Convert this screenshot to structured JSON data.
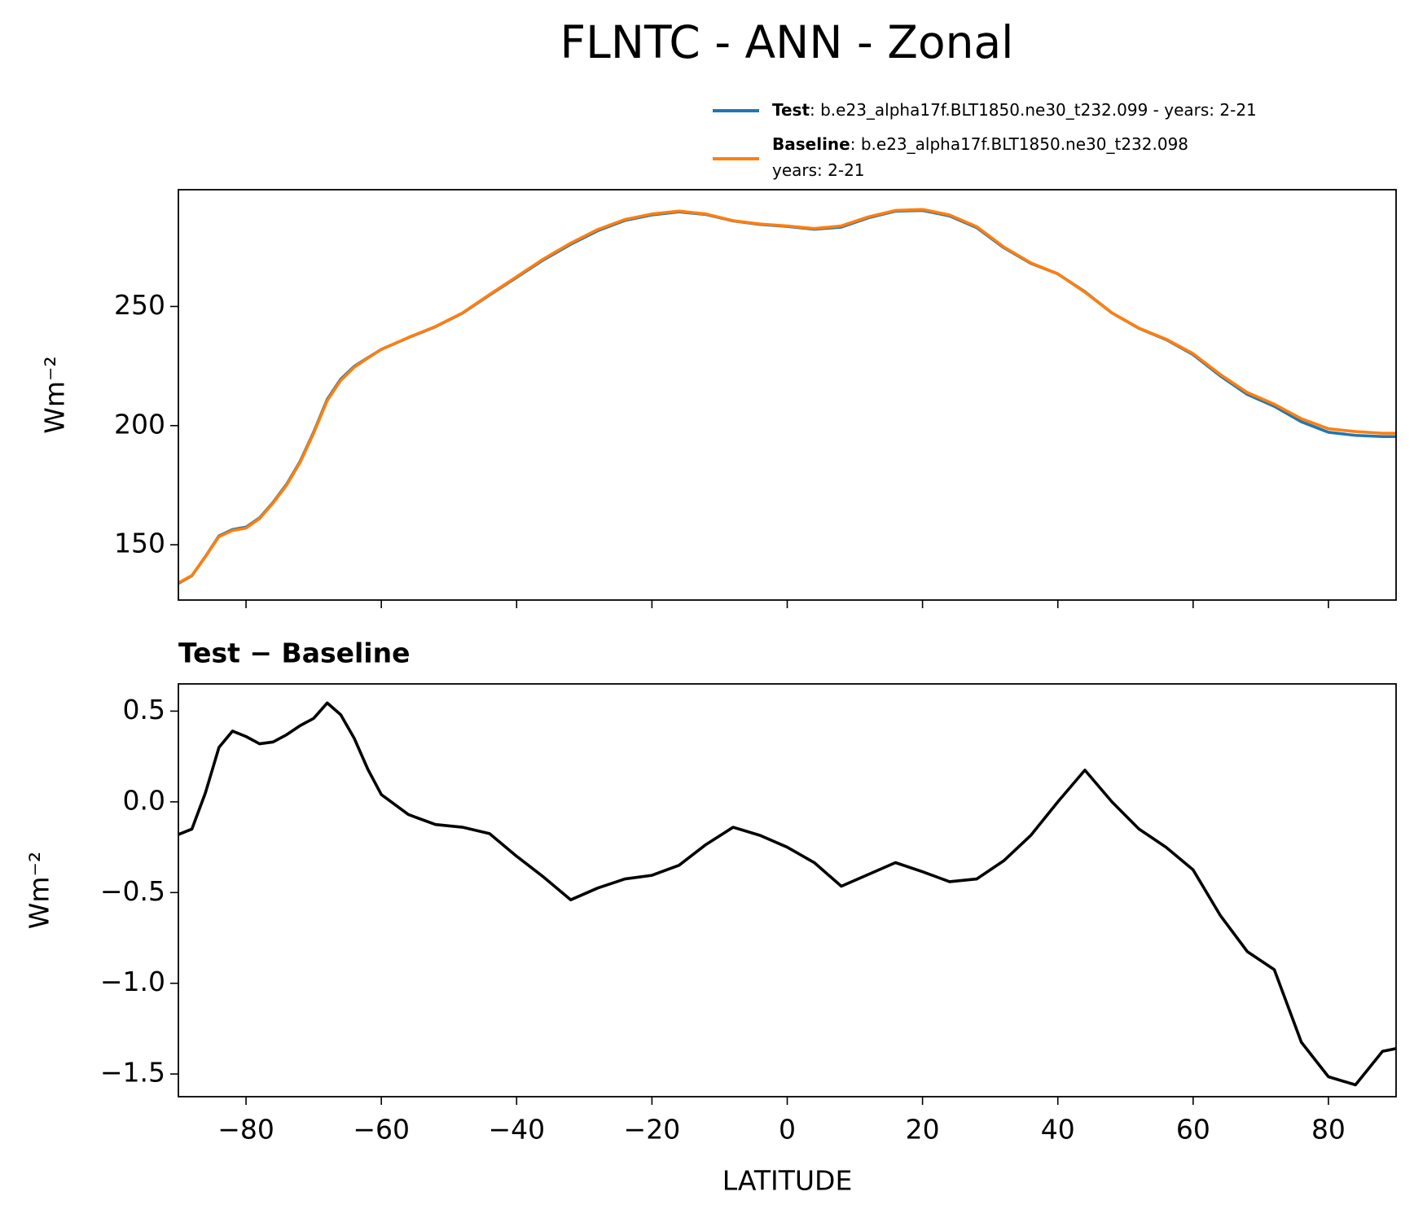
{
  "title": "FLNTC - ANN - Zonal",
  "chart_data": [
    {
      "type": "line",
      "ylabel": "Wm⁻²",
      "x": [
        -90,
        -88,
        -86,
        -84,
        -82,
        -80,
        -78,
        -76,
        -74,
        -72,
        -70,
        -68,
        -66,
        -64,
        -62,
        -60,
        -56,
        -52,
        -48,
        -44,
        -40,
        -36,
        -32,
        -28,
        -24,
        -20,
        -16,
        -12,
        -8,
        -4,
        0,
        4,
        8,
        12,
        16,
        20,
        24,
        28,
        32,
        36,
        40,
        44,
        48,
        52,
        56,
        60,
        64,
        68,
        72,
        76,
        80,
        84,
        88,
        90
      ],
      "series": [
        {
          "name": "Test",
          "description": [
            ": b.e23_alpha17f.BLT1850.ne30_t232.099 - years: 2-21"
          ],
          "color": "#1f77b4",
          "values": [
            133.8,
            137.0,
            145.1,
            153.7,
            156.4,
            157.4,
            161.3,
            167.8,
            175.4,
            185.0,
            197.3,
            211.0,
            219.5,
            224.9,
            228.5,
            232.0,
            236.9,
            241.5,
            247.2,
            254.8,
            262.2,
            269.6,
            276.1,
            281.8,
            286.1,
            288.4,
            289.7,
            288.6,
            285.9,
            284.4,
            283.6,
            282.4,
            283.3,
            287.2,
            290.0,
            290.3,
            288.0,
            283.1,
            274.7,
            268.1,
            263.7,
            256.2,
            247.3,
            240.8,
            236.1,
            229.8,
            220.9,
            213.1,
            208.1,
            201.6,
            197.2,
            195.9,
            195.4,
            195.4
          ]
        },
        {
          "name": "Baseline",
          "description": [
            ": b.e23_alpha17f.BLT1850.ne30_t232.098",
            "years: 2-21"
          ],
          "color": "#ff7f0e",
          "values": [
            134.0,
            137.1,
            145.0,
            153.4,
            156.0,
            157.0,
            161.0,
            167.5,
            175.0,
            184.6,
            196.8,
            210.5,
            219.0,
            224.5,
            228.3,
            232.0,
            237.0,
            241.6,
            247.3,
            255.0,
            262.5,
            270.0,
            276.6,
            282.3,
            286.5,
            288.8,
            290.0,
            288.8,
            286.0,
            284.6,
            283.8,
            282.7,
            283.8,
            287.6,
            290.3,
            290.7,
            288.4,
            283.5,
            275.0,
            268.3,
            263.7,
            256.0,
            247.3,
            240.9,
            236.3,
            230.2,
            221.5,
            213.9,
            209.0,
            202.9,
            198.7,
            197.5,
            196.8,
            196.8
          ]
        }
      ],
      "xlim": [
        -90,
        90
      ],
      "xticks": [
        -80,
        -60,
        -40,
        -20,
        0,
        20,
        40,
        60,
        80
      ],
      "ylim": [
        126.8,
        299.0
      ],
      "yticks": [
        150,
        200,
        250
      ]
    },
    {
      "type": "line",
      "title": "Test − Baseline",
      "ylabel": "Wm⁻²",
      "xlabel": "LATITUDE",
      "x": [
        -90,
        -88,
        -86,
        -84,
        -82,
        -80,
        -78,
        -76,
        -74,
        -72,
        -70,
        -68,
        -66,
        -64,
        -62,
        -60,
        -56,
        -52,
        -48,
        -44,
        -40,
        -36,
        -32,
        -28,
        -24,
        -20,
        -16,
        -12,
        -8,
        -4,
        0,
        4,
        8,
        12,
        16,
        20,
        24,
        28,
        32,
        36,
        40,
        44,
        48,
        52,
        56,
        60,
        64,
        68,
        72,
        76,
        80,
        84,
        88,
        90
      ],
      "series": [
        {
          "color": "#000000",
          "values": [
            -0.18,
            -0.15,
            0.05,
            0.3,
            0.39,
            0.36,
            0.32,
            0.33,
            0.37,
            0.42,
            0.46,
            0.545,
            0.48,
            0.35,
            0.18,
            0.04,
            -0.07,
            -0.125,
            -0.14,
            -0.175,
            -0.3,
            -0.415,
            -0.54,
            -0.475,
            -0.425,
            -0.405,
            -0.35,
            -0.235,
            -0.14,
            -0.185,
            -0.25,
            -0.335,
            -0.465,
            -0.4,
            -0.335,
            -0.385,
            -0.44,
            -0.425,
            -0.325,
            -0.185,
            0.0,
            0.175,
            0.0,
            -0.15,
            -0.25,
            -0.375,
            -0.625,
            -0.825,
            -0.925,
            -1.325,
            -1.515,
            -1.56,
            -1.375,
            -1.36
          ]
        }
      ],
      "xlim": [
        -90,
        90
      ],
      "xticks": [
        {
          "value": -80,
          "label": "−80"
        },
        {
          "value": -60,
          "label": "−60"
        },
        {
          "value": -40,
          "label": "−40"
        },
        {
          "value": -20,
          "label": "−20"
        },
        0,
        20,
        40,
        60,
        80
      ],
      "ylim": [
        -1.625,
        0.65
      ],
      "yticks": [
        {
          "value": -1.5,
          "label": "−1.5"
        },
        {
          "value": -1.0,
          "label": "−1.0"
        },
        {
          "value": -0.5,
          "label": "−0.5"
        },
        {
          "value": 0,
          "label": "0.0"
        },
        0.5
      ]
    }
  ]
}
